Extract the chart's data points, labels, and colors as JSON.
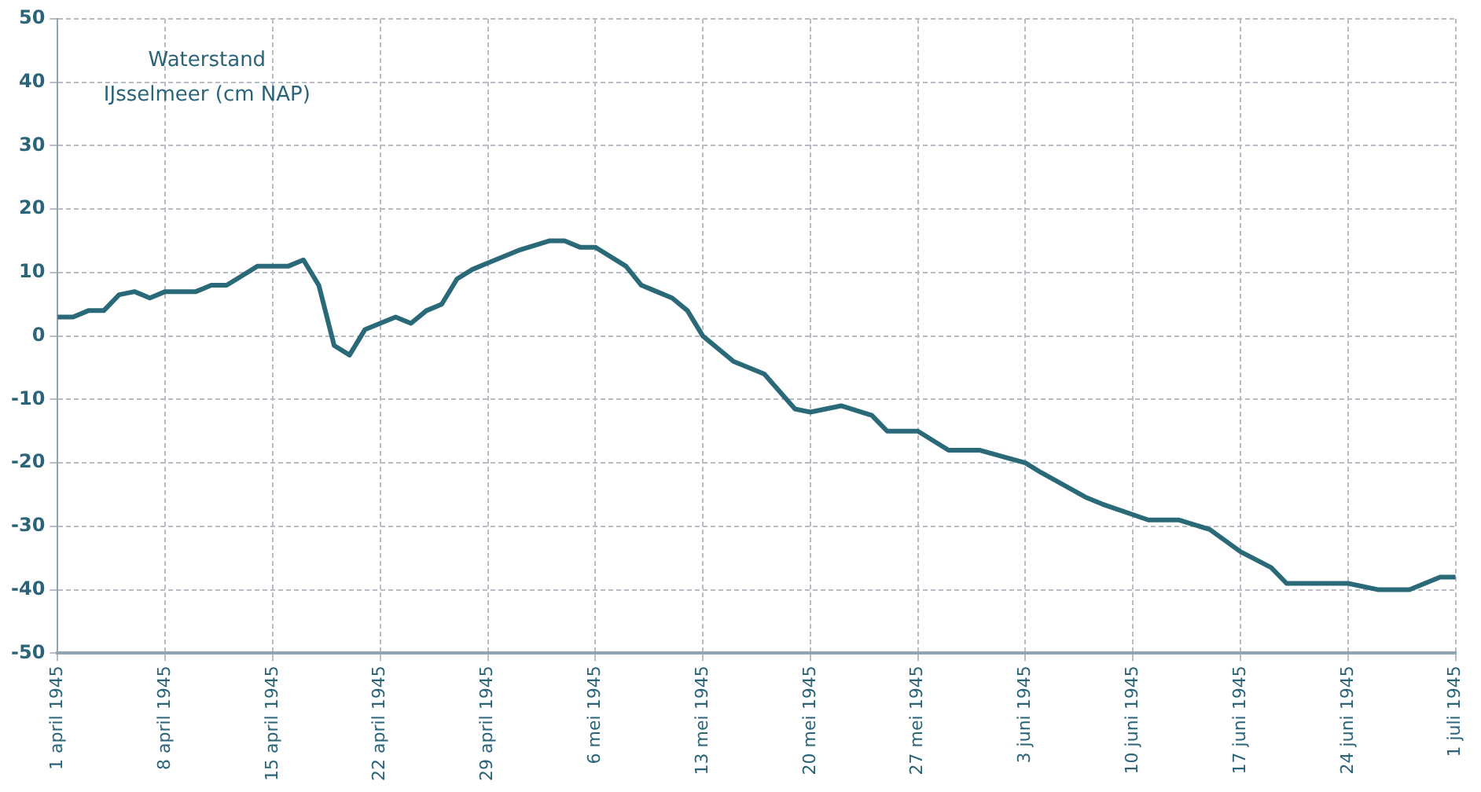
{
  "chart_data": {
    "type": "line",
    "title": "Waterstand\nIJsselmeer (cm NAP)",
    "x": [
      "1945-04-01",
      "1945-04-02",
      "1945-04-03",
      "1945-04-04",
      "1945-04-05",
      "1945-04-06",
      "1945-04-07",
      "1945-04-08",
      "1945-04-10",
      "1945-04-11",
      "1945-04-12",
      "1945-04-13",
      "1945-04-14",
      "1945-04-16",
      "1945-04-17",
      "1945-04-18",
      "1945-04-19",
      "1945-04-20",
      "1945-04-21",
      "1945-04-22",
      "1945-04-23",
      "1945-04-24",
      "1945-04-25",
      "1945-04-26",
      "1945-04-27",
      "1945-04-28",
      "1945-04-29",
      "1945-04-30",
      "1945-05-01",
      "1945-05-03",
      "1945-05-04",
      "1945-05-05",
      "1945-05-06",
      "1945-05-08",
      "1945-05-09",
      "1945-05-10",
      "1945-05-11",
      "1945-05-12",
      "1945-05-13",
      "1945-05-15",
      "1945-05-17",
      "1945-05-19",
      "1945-05-20",
      "1945-05-22",
      "1945-05-24",
      "1945-05-25",
      "1945-05-27",
      "1945-05-29",
      "1945-05-31",
      "1945-06-03",
      "1945-06-04",
      "1945-06-07",
      "1945-06-08",
      "1945-06-11",
      "1945-06-13",
      "1945-06-15",
      "1945-06-17",
      "1945-06-19",
      "1945-06-20",
      "1945-06-24",
      "1945-06-26",
      "1945-06-28",
      "1945-06-30",
      "1945-07-01"
    ],
    "series": [
      {
        "color": "#2a6a78",
        "values": [
          3,
          3,
          4,
          4,
          6.5,
          7,
          6,
          7,
          7,
          8,
          8,
          9.5,
          11,
          11,
          12,
          8,
          -1.5,
          -3,
          1,
          2,
          3,
          2,
          4,
          5,
          9,
          10.5,
          11.5,
          12.5,
          13.5,
          15,
          15,
          14,
          14,
          11,
          8,
          7,
          6,
          4,
          0,
          -4,
          -6,
          -11.5,
          -12,
          -11,
          -12.5,
          -15,
          -15,
          -18,
          -18,
          -20,
          -21.5,
          -25.5,
          -26.5,
          -29,
          -29,
          -30.5,
          -34,
          -36.5,
          -39,
          -39,
          -40,
          -40,
          -38,
          -38
        ]
      }
    ],
    "xlim": [
      "1945-04-01",
      "1945-07-01"
    ],
    "xticks": [
      {
        "value": "1945-04-01",
        "label": "1 april 1945"
      },
      {
        "value": "1945-04-08",
        "label": "8 april 1945"
      },
      {
        "value": "1945-04-15",
        "label": "15 april 1945"
      },
      {
        "value": "1945-04-22",
        "label": "22 april 1945"
      },
      {
        "value": "1945-04-29",
        "label": "29 april 1945"
      },
      {
        "value": "1945-05-06",
        "label": "6 mei 1945"
      },
      {
        "value": "1945-05-13",
        "label": "13 mei 1945"
      },
      {
        "value": "1945-05-20",
        "label": "20 mei 1945"
      },
      {
        "value": "1945-05-27",
        "label": "27 mei 1945"
      },
      {
        "value": "1945-06-03",
        "label": "3 juni 1945"
      },
      {
        "value": "1945-06-10",
        "label": "10 juni 1945"
      },
      {
        "value": "1945-06-17",
        "label": "17 juni 1945"
      },
      {
        "value": "1945-06-24",
        "label": "24 juni 1945"
      },
      {
        "value": "1945-07-01",
        "label": "1 juli 1945"
      }
    ],
    "ylim": [
      -50,
      50
    ],
    "yticks": [
      -50,
      -40,
      -30,
      -20,
      -10,
      0,
      10,
      20,
      30,
      40,
      50
    ],
    "grid": true,
    "marker": "none",
    "line_style": "solid"
  }
}
